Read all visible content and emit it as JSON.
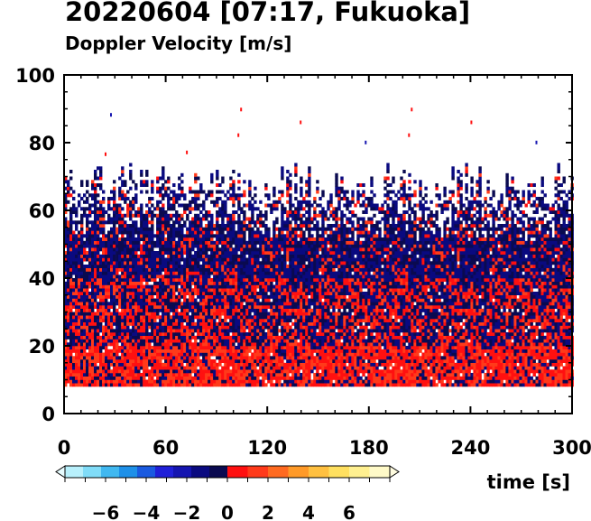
{
  "chart_data": {
    "type": "heatmap",
    "title": "20220604 [07:17, Fukuoka]",
    "subtitle": "Doppler Velocity [m/s]",
    "xlabel": "time [s]",
    "ylabel": "",
    "xlim": [
      0,
      300
    ],
    "ylim": [
      0,
      100
    ],
    "xticks": [
      0,
      60,
      120,
      180,
      240,
      300
    ],
    "yticks": [
      0,
      20,
      40,
      60,
      80,
      100
    ],
    "grid": false,
    "colorbar": {
      "ticks": [
        -6,
        -4,
        -2,
        0,
        2,
        4,
        6
      ],
      "range": [
        -8,
        8
      ],
      "colors_negative": [
        "#0a0a50",
        "#0a0a80",
        "#1515b0",
        "#2020d8",
        "#1a5ae0",
        "#1e90e8",
        "#40b8f0",
        "#80dcf8",
        "#b8f0fc"
      ],
      "colors_positive": [
        "#ff1010",
        "#ff3a1a",
        "#ff6a20",
        "#ff9a28",
        "#ffc040",
        "#ffe060",
        "#fff090",
        "#fffac8"
      ]
    },
    "data_extent": {
      "time": [
        0,
        300
      ],
      "height_min": 8,
      "height_max_typical": 70
    },
    "layers": [
      {
        "height_range": [
          8,
          20
        ],
        "dominant_velocity": 1.2,
        "note": "mostly positive (red)"
      },
      {
        "height_range": [
          20,
          40
        ],
        "dominant_velocity": -1.0,
        "note": "mixed red/blue"
      },
      {
        "height_range": [
          40,
          70
        ],
        "dominant_velocity": -1.5,
        "note": "mostly negative (blue)"
      }
    ]
  }
}
